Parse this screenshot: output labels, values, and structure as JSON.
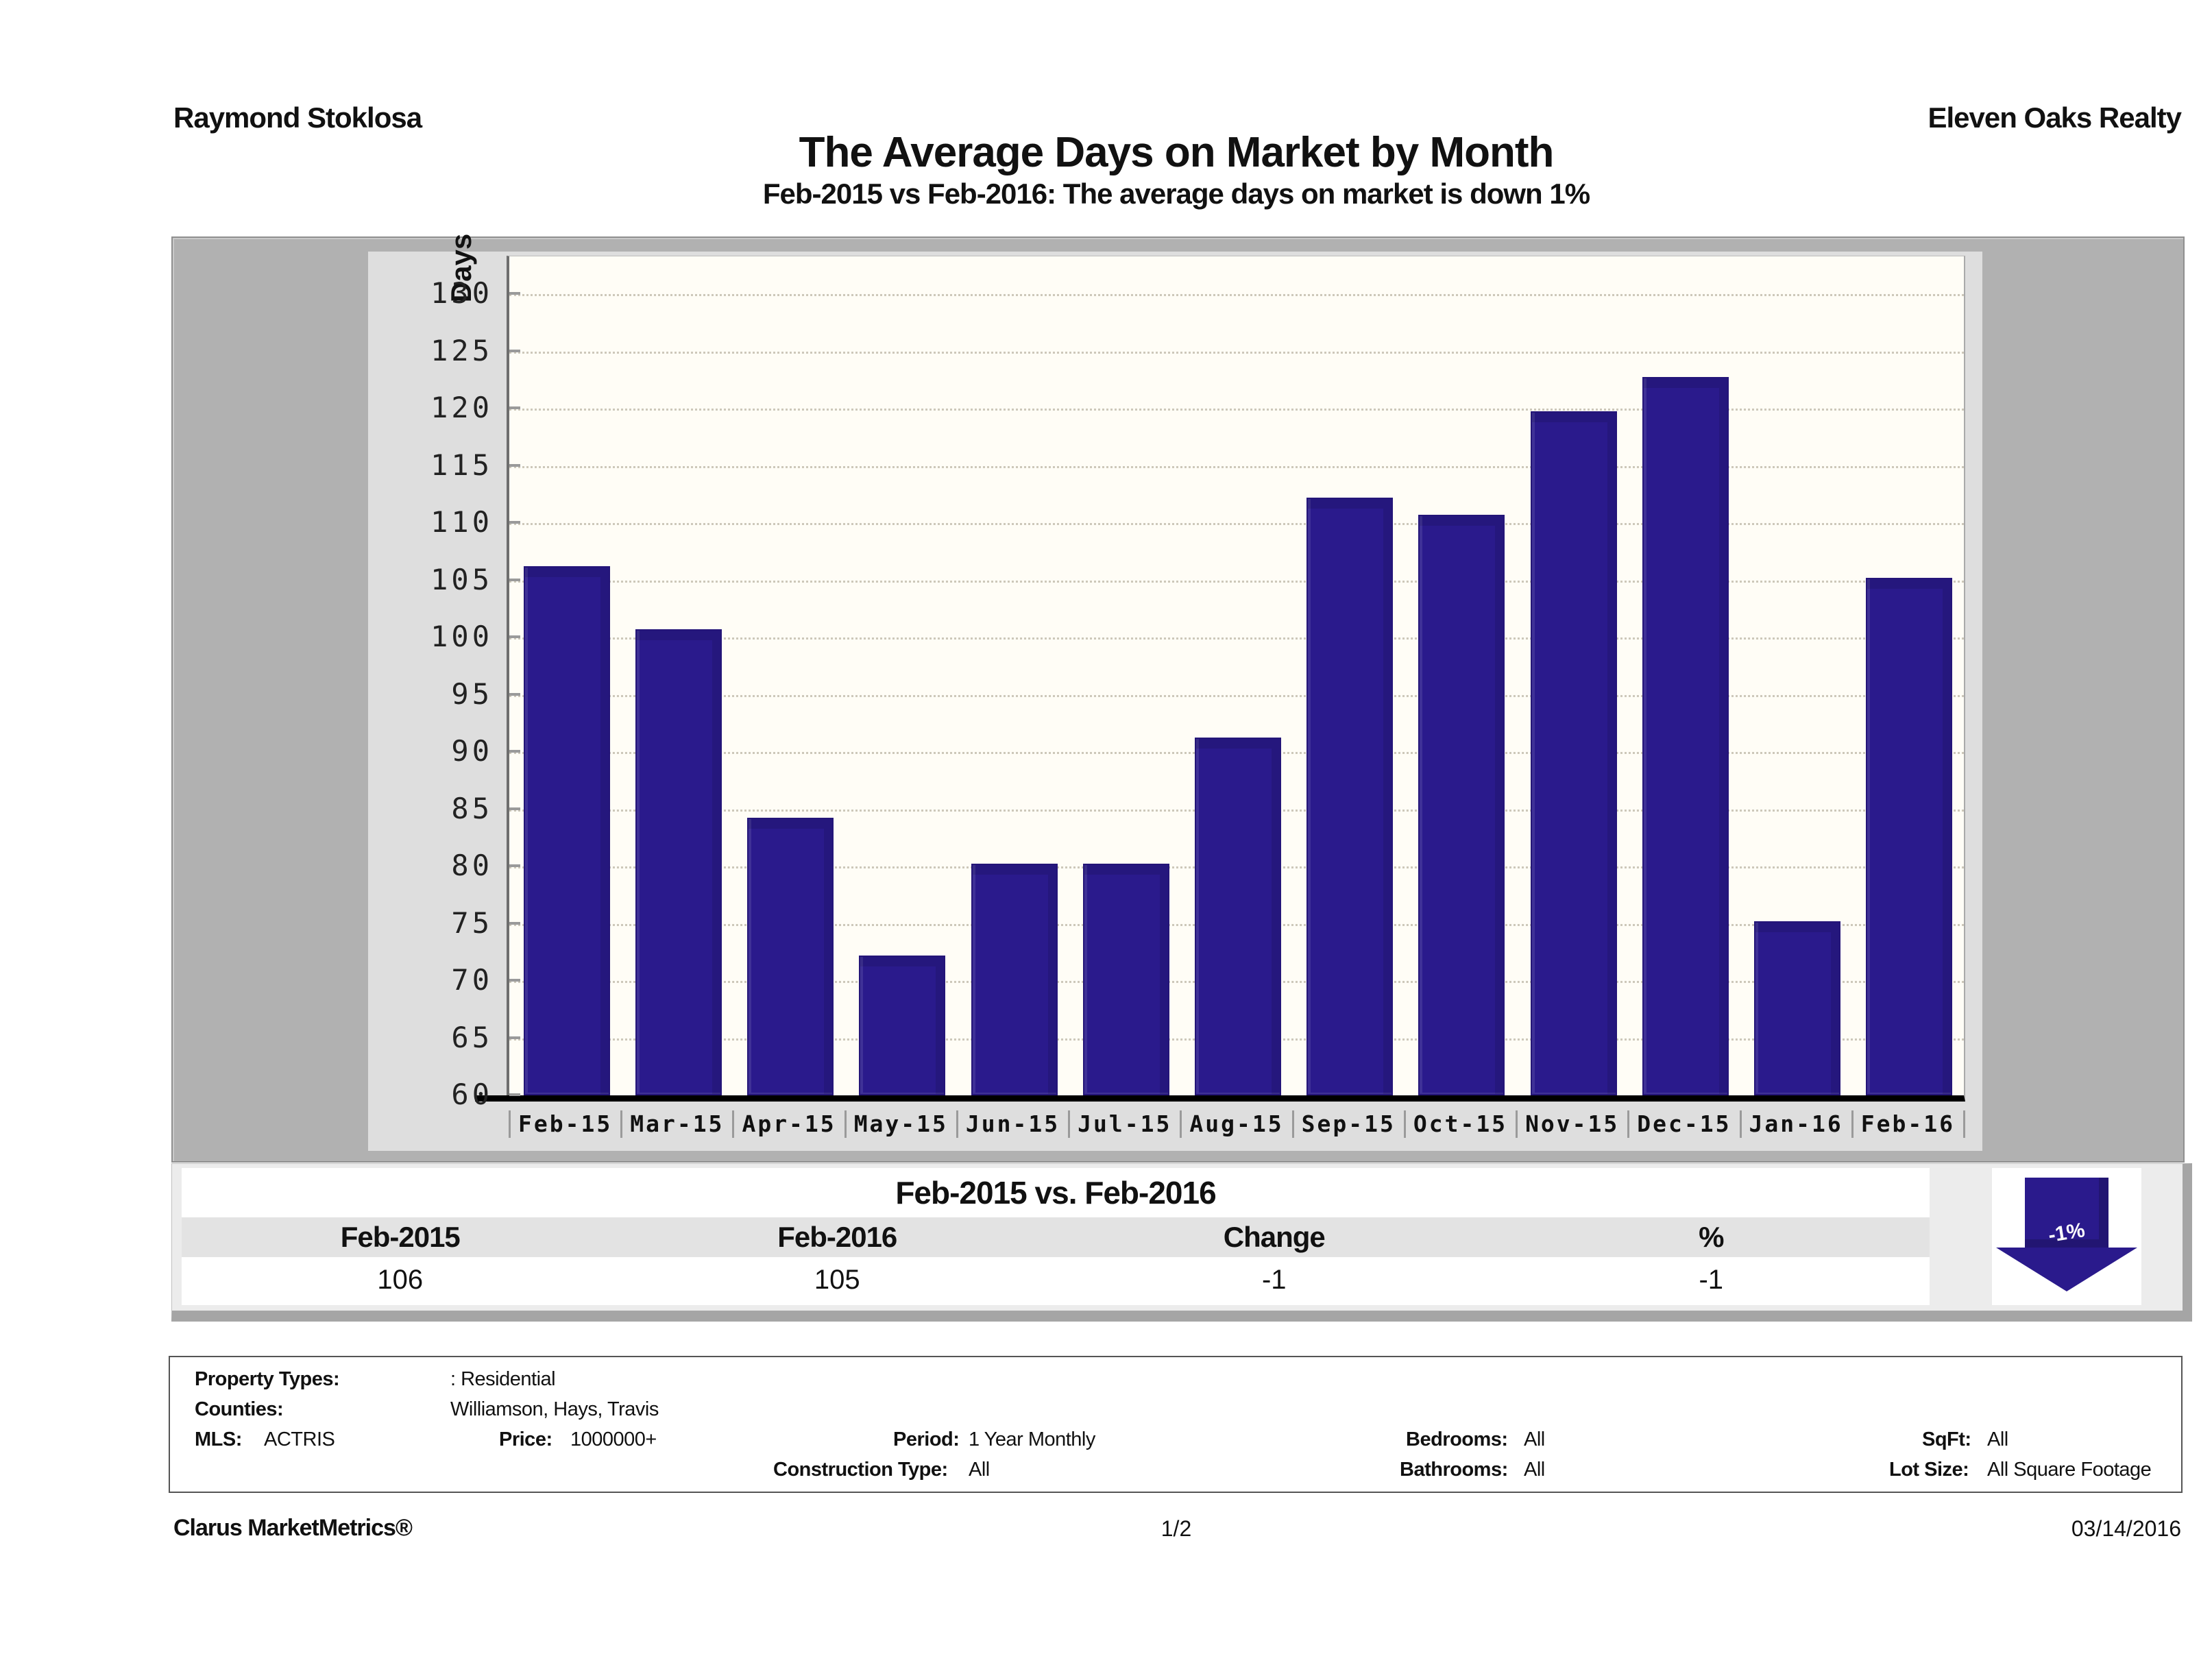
{
  "header": {
    "agent": "Raymond Stoklosa",
    "company": "Eleven Oaks Realty"
  },
  "title": "The Average Days on Market by Month",
  "subtitle": "Feb-2015 vs Feb-2016: The average days on market is down 1%",
  "chart_data": {
    "type": "bar",
    "categories": [
      "Feb-15",
      "Mar-15",
      "Apr-15",
      "May-15",
      "Jun-15",
      "Jul-15",
      "Aug-15",
      "Sep-15",
      "Oct-15",
      "Nov-15",
      "Dec-15",
      "Jan-16",
      "Feb-16"
    ],
    "values": [
      106,
      100.5,
      84,
      72,
      80,
      80,
      91,
      112,
      110.5,
      119.5,
      122.5,
      75,
      105
    ],
    "title": "The Average Days on Market by Month",
    "xlabel": "",
    "ylabel": "Days",
    "ylim": [
      60,
      130
    ],
    "ytick_step": 5,
    "grid": "horizontal-dotted",
    "legend": "none",
    "bar_color": "#2a1a8c"
  },
  "comparison_table": {
    "title": "Feb-2015 vs. Feb-2016",
    "columns": [
      "Feb-2015",
      "Feb-2016",
      "Change",
      "%"
    ],
    "values": [
      "106",
      "105",
      "-1",
      "-1"
    ],
    "arrow": {
      "label": "-1%",
      "direction": "down",
      "color": "#2a1a8c"
    }
  },
  "filters": {
    "property_types": {
      "label": "Property Types:",
      "value": ": Residential"
    },
    "counties": {
      "label": "Counties:",
      "value": "Williamson, Hays, Travis"
    },
    "mls": {
      "label": "MLS:",
      "value": "ACTRIS"
    },
    "price": {
      "label": "Price:",
      "value": "1000000+"
    },
    "period": {
      "label": "Period:",
      "value": "1 Year Monthly"
    },
    "bedrooms": {
      "label": "Bedrooms:",
      "value": "All"
    },
    "sqft": {
      "label": "SqFt:",
      "value": "All"
    },
    "construction_type": {
      "label": "Construction Type:",
      "value": "All"
    },
    "bathrooms": {
      "label": "Bathrooms:",
      "value": "All"
    },
    "lot_size": {
      "label": "Lot Size:",
      "value": "All Square Footage"
    }
  },
  "footer": {
    "brand": "Clarus MarketMetrics®",
    "page": "1/2",
    "date": "03/14/2016"
  }
}
